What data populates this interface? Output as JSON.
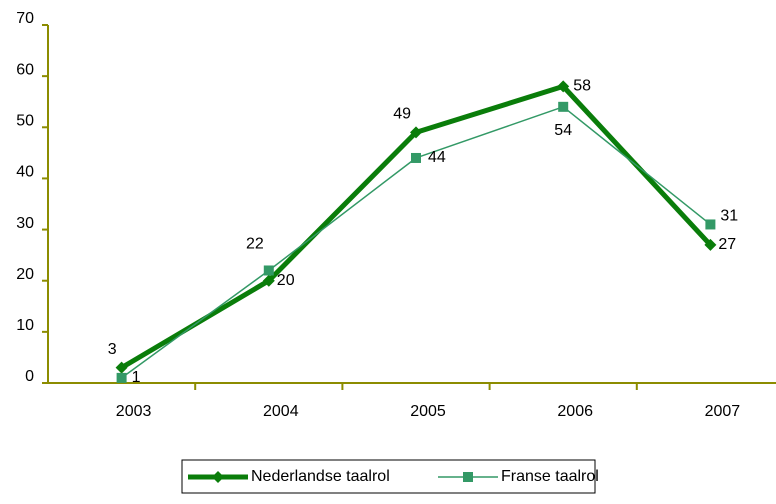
{
  "chart_data": {
    "type": "line",
    "categories": [
      "2003",
      "2004",
      "2005",
      "2006",
      "2007"
    ],
    "series": [
      {
        "name": "Nederlandse taalrol",
        "color": "#0a7d0a",
        "values": [
          3,
          20,
          49,
          58,
          27
        ]
      },
      {
        "name": "Franse taalrol",
        "color": "#339966",
        "values": [
          1,
          22,
          44,
          54,
          31
        ]
      }
    ],
    "ylim": [
      0,
      70
    ],
    "yticks": [
      0,
      10,
      20,
      30,
      40,
      50,
      60,
      70
    ],
    "grid": false
  }
}
